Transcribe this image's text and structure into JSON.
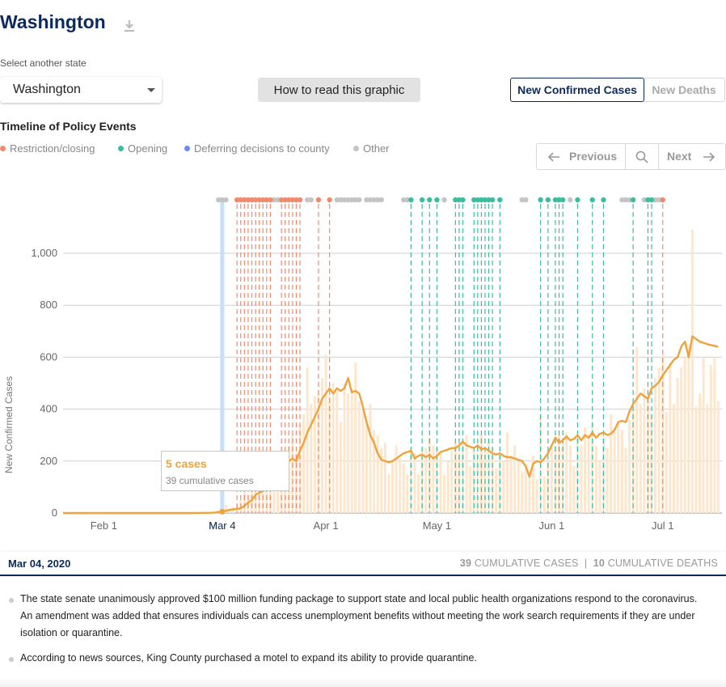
{
  "state": {
    "title": "Washington",
    "select_label": "Select another state",
    "selected": "Washington"
  },
  "how_button": "How to read this graphic",
  "toggle": {
    "active": "New Confirmed Cases",
    "inactive": "New Deaths"
  },
  "timeline": {
    "title": "Timeline of Policy Events",
    "legend": [
      {
        "label": "Restriction/closing",
        "color": "#ef8a6f"
      },
      {
        "label": "Opening",
        "color": "#3dbd9e"
      },
      {
        "label": "Deferring decisions to county",
        "color": "#7187ed"
      },
      {
        "label": "Other",
        "color": "#c4c4c4"
      }
    ],
    "pager": {
      "previous": "Previous",
      "next": "Next"
    }
  },
  "colors": {
    "navy": "#0d2a5c",
    "line": "#f0a23c",
    "bar": "#fde6cc",
    "selected_band": "#c9dff5"
  },
  "chart_data": {
    "type": "line",
    "ylabel": "New Confirmed Cases",
    "ylim": [
      0,
      1000
    ],
    "yticks": [
      {
        "value": 0,
        "label": "0"
      },
      {
        "value": 200,
        "label": "200"
      },
      {
        "value": 400,
        "label": "400"
      },
      {
        "value": 600,
        "label": "600"
      },
      {
        "value": 800,
        "label": "800"
      },
      {
        "value": 1000,
        "label": "1,000"
      }
    ],
    "xrange": [
      "2020-01-21",
      "2020-07-17"
    ],
    "xticks": [
      {
        "date": "2020-02-01",
        "label": "Feb 1"
      },
      {
        "date": "2020-03-01",
        "label": "M"
      },
      {
        "date": "2020-04-01",
        "label": "Apr 1"
      },
      {
        "date": "2020-05-01",
        "label": "May 1"
      },
      {
        "date": "2020-06-01",
        "label": "Jun 1"
      },
      {
        "date": "2020-07-01",
        "label": "Jul 1"
      }
    ],
    "selected_date": "2020-03-04",
    "selected_label": "Mar 4",
    "bars_series_name": "Daily new cases",
    "bars": [
      [
        "2020-03-01",
        2
      ],
      [
        "2020-03-02",
        5
      ],
      [
        "2020-03-03",
        9
      ],
      [
        "2020-03-04",
        5
      ],
      [
        "2020-03-05",
        31
      ],
      [
        "2020-03-06",
        12
      ],
      [
        "2020-03-07",
        23
      ],
      [
        "2020-03-08",
        34
      ],
      [
        "2020-03-09",
        50
      ],
      [
        "2020-03-10",
        95
      ],
      [
        "2020-03-11",
        70
      ],
      [
        "2020-03-12",
        110
      ],
      [
        "2020-03-13",
        210
      ],
      [
        "2020-03-14",
        90
      ],
      [
        "2020-03-15",
        130
      ],
      [
        "2020-03-16",
        120
      ],
      [
        "2020-03-17",
        220
      ],
      [
        "2020-03-18",
        180
      ],
      [
        "2020-03-19",
        210
      ],
      [
        "2020-03-20",
        190
      ],
      [
        "2020-03-21",
        230
      ],
      [
        "2020-03-22",
        260
      ],
      [
        "2020-03-23",
        300
      ],
      [
        "2020-03-24",
        230
      ],
      [
        "2020-03-25",
        340
      ],
      [
        "2020-03-26",
        380
      ],
      [
        "2020-03-27",
        560
      ],
      [
        "2020-03-28",
        420
      ],
      [
        "2020-03-29",
        450
      ],
      [
        "2020-03-30",
        460
      ],
      [
        "2020-03-31",
        520
      ],
      [
        "2020-04-01",
        610
      ],
      [
        "2020-04-02",
        450
      ],
      [
        "2020-04-03",
        500
      ],
      [
        "2020-04-04",
        470
      ],
      [
        "2020-04-05",
        350
      ],
      [
        "2020-04-06",
        500
      ],
      [
        "2020-04-07",
        460
      ],
      [
        "2020-04-08",
        480
      ],
      [
        "2020-04-09",
        580
      ],
      [
        "2020-04-10",
        430
      ],
      [
        "2020-04-11",
        400
      ],
      [
        "2020-04-12",
        360
      ],
      [
        "2020-04-13",
        420
      ],
      [
        "2020-04-14",
        320
      ],
      [
        "2020-04-15",
        300
      ],
      [
        "2020-04-16",
        250
      ],
      [
        "2020-04-17",
        270
      ],
      [
        "2020-04-18",
        150
      ],
      [
        "2020-04-19",
        200
      ],
      [
        "2020-04-20",
        260
      ],
      [
        "2020-04-21",
        210
      ],
      [
        "2020-04-22",
        190
      ],
      [
        "2020-04-23",
        150
      ],
      [
        "2020-04-24",
        240
      ],
      [
        "2020-04-25",
        230
      ],
      [
        "2020-04-26",
        150
      ],
      [
        "2020-04-27",
        240
      ],
      [
        "2020-04-28",
        250
      ],
      [
        "2020-04-29",
        290
      ],
      [
        "2020-04-30",
        260
      ],
      [
        "2020-05-01",
        250
      ],
      [
        "2020-05-02",
        230
      ],
      [
        "2020-05-03",
        150
      ],
      [
        "2020-05-04",
        200
      ],
      [
        "2020-05-05",
        240
      ],
      [
        "2020-05-06",
        270
      ],
      [
        "2020-05-07",
        230
      ],
      [
        "2020-05-08",
        280
      ],
      [
        "2020-05-09",
        300
      ],
      [
        "2020-05-10",
        180
      ],
      [
        "2020-05-11",
        240
      ],
      [
        "2020-05-12",
        230
      ],
      [
        "2020-05-13",
        300
      ],
      [
        "2020-05-14",
        240
      ],
      [
        "2020-05-15",
        280
      ],
      [
        "2020-05-16",
        250
      ],
      [
        "2020-05-17",
        170
      ],
      [
        "2020-05-18",
        230
      ],
      [
        "2020-05-19",
        200
      ],
      [
        "2020-05-20",
        310
      ],
      [
        "2020-05-21",
        220
      ],
      [
        "2020-05-22",
        260
      ],
      [
        "2020-05-23",
        200
      ],
      [
        "2020-05-24",
        160
      ],
      [
        "2020-05-25",
        170
      ],
      [
        "2020-05-26",
        160
      ],
      [
        "2020-05-27",
        220
      ],
      [
        "2020-05-28",
        130
      ],
      [
        "2020-05-29",
        380
      ],
      [
        "2020-05-30",
        140
      ],
      [
        "2020-05-31",
        200
      ],
      [
        "2020-06-01",
        250
      ],
      [
        "2020-06-02",
        260
      ],
      [
        "2020-06-03",
        300
      ],
      [
        "2020-06-04",
        290
      ],
      [
        "2020-06-05",
        310
      ],
      [
        "2020-06-06",
        260
      ],
      [
        "2020-06-07",
        180
      ],
      [
        "2020-06-08",
        290
      ],
      [
        "2020-06-09",
        260
      ],
      [
        "2020-06-10",
        330
      ],
      [
        "2020-06-11",
        300
      ],
      [
        "2020-06-12",
        350
      ],
      [
        "2020-06-13",
        260
      ],
      [
        "2020-06-14",
        200
      ],
      [
        "2020-06-15",
        300
      ],
      [
        "2020-06-16",
        250
      ],
      [
        "2020-06-17",
        380
      ],
      [
        "2020-06-18",
        310
      ],
      [
        "2020-06-19",
        350
      ],
      [
        "2020-06-20",
        320
      ],
      [
        "2020-06-21",
        250
      ],
      [
        "2020-06-22",
        360
      ],
      [
        "2020-06-23",
        400
      ],
      [
        "2020-06-24",
        640
      ],
      [
        "2020-06-25",
        420
      ],
      [
        "2020-06-26",
        480
      ],
      [
        "2020-06-27",
        450
      ],
      [
        "2020-06-28",
        380
      ],
      [
        "2020-06-29",
        520
      ],
      [
        "2020-06-30",
        560
      ],
      [
        "2020-07-01",
        610
      ],
      [
        "2020-07-02",
        390
      ],
      [
        "2020-07-03",
        580
      ],
      [
        "2020-07-04",
        420
      ],
      [
        "2020-07-05",
        520
      ],
      [
        "2020-07-06",
        560
      ],
      [
        "2020-07-07",
        600
      ],
      [
        "2020-07-08",
        650
      ],
      [
        "2020-07-09",
        1090
      ],
      [
        "2020-07-10",
        410
      ],
      [
        "2020-07-11",
        460
      ],
      [
        "2020-07-12",
        600
      ],
      [
        "2020-07-13",
        420
      ],
      [
        "2020-07-14",
        570
      ],
      [
        "2020-07-15",
        600
      ],
      [
        "2020-07-16",
        430
      ]
    ],
    "line_series_name": "7-day average",
    "line": [
      [
        "2020-01-21",
        0
      ],
      [
        "2020-02-25",
        0
      ],
      [
        "2020-03-01",
        1
      ],
      [
        "2020-03-02",
        2
      ],
      [
        "2020-03-03",
        4
      ],
      [
        "2020-03-04",
        5
      ],
      [
        "2020-03-06",
        12
      ],
      [
        "2020-03-08",
        16
      ],
      [
        "2020-03-09",
        18
      ],
      [
        "2020-03-10",
        28
      ],
      [
        "2020-03-11",
        40
      ],
      [
        "2020-03-12",
        50
      ],
      [
        "2020-03-13",
        70
      ],
      [
        "2020-03-14",
        78
      ],
      [
        "2020-03-15",
        85
      ],
      [
        "2020-03-16",
        90
      ],
      [
        "2020-03-17",
        100
      ],
      [
        "2020-03-18",
        105
      ],
      [
        "2020-03-19",
        130
      ],
      [
        "2020-03-20",
        150
      ],
      [
        "2020-03-21",
        175
      ],
      [
        "2020-03-22",
        200
      ],
      [
        "2020-03-23",
        210
      ],
      [
        "2020-03-24",
        200
      ],
      [
        "2020-03-25",
        240
      ],
      [
        "2020-03-26",
        270
      ],
      [
        "2020-03-27",
        310
      ],
      [
        "2020-03-28",
        340
      ],
      [
        "2020-03-29",
        370
      ],
      [
        "2020-03-30",
        400
      ],
      [
        "2020-03-31",
        440
      ],
      [
        "2020-04-01",
        460
      ],
      [
        "2020-04-02",
        480
      ],
      [
        "2020-04-03",
        460
      ],
      [
        "2020-04-04",
        480
      ],
      [
        "2020-04-05",
        470
      ],
      [
        "2020-04-06",
        480
      ],
      [
        "2020-04-07",
        520
      ],
      [
        "2020-04-08",
        465
      ],
      [
        "2020-04-09",
        470
      ],
      [
        "2020-04-10",
        460
      ],
      [
        "2020-04-11",
        410
      ],
      [
        "2020-04-12",
        350
      ],
      [
        "2020-04-13",
        300
      ],
      [
        "2020-04-14",
        270
      ],
      [
        "2020-04-15",
        230
      ],
      [
        "2020-04-16",
        205
      ],
      [
        "2020-04-17",
        200
      ],
      [
        "2020-04-18",
        195
      ],
      [
        "2020-04-19",
        200
      ],
      [
        "2020-04-20",
        210
      ],
      [
        "2020-04-21",
        220
      ],
      [
        "2020-04-22",
        230
      ],
      [
        "2020-04-23",
        235
      ],
      [
        "2020-04-24",
        240
      ],
      [
        "2020-04-25",
        210
      ],
      [
        "2020-04-26",
        220
      ],
      [
        "2020-04-27",
        225
      ],
      [
        "2020-04-28",
        215
      ],
      [
        "2020-04-29",
        225
      ],
      [
        "2020-04-30",
        210
      ],
      [
        "2020-05-01",
        220
      ],
      [
        "2020-05-02",
        235
      ],
      [
        "2020-05-03",
        240
      ],
      [
        "2020-05-04",
        245
      ],
      [
        "2020-05-05",
        250
      ],
      [
        "2020-05-06",
        250
      ],
      [
        "2020-05-07",
        260
      ],
      [
        "2020-05-08",
        275
      ],
      [
        "2020-05-09",
        260
      ],
      [
        "2020-05-10",
        255
      ],
      [
        "2020-05-11",
        250
      ],
      [
        "2020-05-12",
        260
      ],
      [
        "2020-05-13",
        245
      ],
      [
        "2020-05-14",
        250
      ],
      [
        "2020-05-15",
        240
      ],
      [
        "2020-05-16",
        230
      ],
      [
        "2020-05-17",
        225
      ],
      [
        "2020-05-18",
        230
      ],
      [
        "2020-05-19",
        220
      ],
      [
        "2020-05-20",
        215
      ],
      [
        "2020-05-21",
        215
      ],
      [
        "2020-05-22",
        210
      ],
      [
        "2020-05-23",
        205
      ],
      [
        "2020-05-24",
        200
      ],
      [
        "2020-05-25",
        180
      ],
      [
        "2020-05-26",
        140
      ],
      [
        "2020-05-27",
        190
      ],
      [
        "2020-05-28",
        200
      ],
      [
        "2020-05-29",
        195
      ],
      [
        "2020-05-30",
        210
      ],
      [
        "2020-05-31",
        230
      ],
      [
        "2020-06-01",
        260
      ],
      [
        "2020-06-02",
        290
      ],
      [
        "2020-06-03",
        270
      ],
      [
        "2020-06-04",
        280
      ],
      [
        "2020-06-05",
        295
      ],
      [
        "2020-06-06",
        280
      ],
      [
        "2020-06-07",
        285
      ],
      [
        "2020-06-08",
        300
      ],
      [
        "2020-06-09",
        280
      ],
      [
        "2020-06-10",
        300
      ],
      [
        "2020-06-11",
        290
      ],
      [
        "2020-06-12",
        310
      ],
      [
        "2020-06-13",
        290
      ],
      [
        "2020-06-14",
        305
      ],
      [
        "2020-06-15",
        310
      ],
      [
        "2020-06-16",
        300
      ],
      [
        "2020-06-17",
        305
      ],
      [
        "2020-06-18",
        320
      ],
      [
        "2020-06-19",
        350
      ],
      [
        "2020-06-20",
        355
      ],
      [
        "2020-06-21",
        350
      ],
      [
        "2020-06-22",
        390
      ],
      [
        "2020-06-23",
        420
      ],
      [
        "2020-06-24",
        440
      ],
      [
        "2020-06-25",
        460
      ],
      [
        "2020-06-26",
        450
      ],
      [
        "2020-06-27",
        440
      ],
      [
        "2020-06-28",
        480
      ],
      [
        "2020-06-29",
        490
      ],
      [
        "2020-06-30",
        505
      ],
      [
        "2020-07-01",
        530
      ],
      [
        "2020-07-02",
        550
      ],
      [
        "2020-07-03",
        570
      ],
      [
        "2020-07-04",
        590
      ],
      [
        "2020-07-05",
        600
      ],
      [
        "2020-07-06",
        640
      ],
      [
        "2020-07-07",
        660
      ],
      [
        "2020-07-08",
        600
      ],
      [
        "2020-07-09",
        680
      ],
      [
        "2020-07-11",
        660
      ],
      [
        "2020-07-13",
        650
      ],
      [
        "2020-07-16",
        640
      ]
    ],
    "policy_events_restriction": [
      "2020-03-08",
      "2020-03-09",
      "2020-03-10",
      "2020-03-11",
      "2020-03-12",
      "2020-03-13",
      "2020-03-14",
      "2020-03-15",
      "2020-03-16",
      "2020-03-17",
      "2020-03-20",
      "2020-03-21",
      "2020-03-22",
      "2020-03-23",
      "2020-03-24",
      "2020-03-25",
      "2020-03-30",
      "2020-04-02",
      "2020-07-01"
    ],
    "policy_events_opening": [
      "2020-04-24",
      "2020-04-27",
      "2020-04-29",
      "2020-05-01",
      "2020-05-06",
      "2020-05-07",
      "2020-05-08",
      "2020-05-11",
      "2020-05-12",
      "2020-05-13",
      "2020-05-14",
      "2020-05-15",
      "2020-05-16",
      "2020-05-18",
      "2020-05-29",
      "2020-05-31",
      "2020-06-02",
      "2020-06-03",
      "2020-06-04",
      "2020-06-08",
      "2020-06-12",
      "2020-06-15",
      "2020-06-23",
      "2020-06-27",
      "2020-06-28"
    ],
    "policy_events_other": [
      "2020-03-03",
      "2020-03-04",
      "2020-03-05",
      "2020-03-18",
      "2020-03-19",
      "2020-03-27",
      "2020-03-28",
      "2020-04-04",
      "2020-04-05",
      "2020-04-06",
      "2020-04-07",
      "2020-04-08",
      "2020-04-09",
      "2020-04-10",
      "2020-04-12",
      "2020-04-13",
      "2020-04-14",
      "2020-04-15",
      "2020-04-16",
      "2020-04-22",
      "2020-04-23",
      "2020-05-03",
      "2020-05-24",
      "2020-05-25",
      "2020-06-06",
      "2020-06-20",
      "2020-06-21",
      "2020-06-22",
      "2020-06-26",
      "2020-06-29",
      "2020-06-30"
    ]
  },
  "tooltip": {
    "cases": "5 cases",
    "cumulative": "39 cumulative cases"
  },
  "selection": {
    "date": "Mar 04, 2020",
    "cum_cases": "39",
    "cum_cases_label": "CUMULATIVE CASES",
    "separator": "|",
    "cum_deaths": "10",
    "cum_deaths_label": "CUMULATIVE DEATHS"
  },
  "events": [
    "The state senate unanimously approved $100 million funding package to support state and local public health organizations respond to the coronavirus. An amendment was added that ensures individuals can access unemployment benefits without meeting the work search requirements if they are under isolation or quarantine.",
    "According to news sources, King County purchased a motel to expand its ability to provide quarantine."
  ]
}
